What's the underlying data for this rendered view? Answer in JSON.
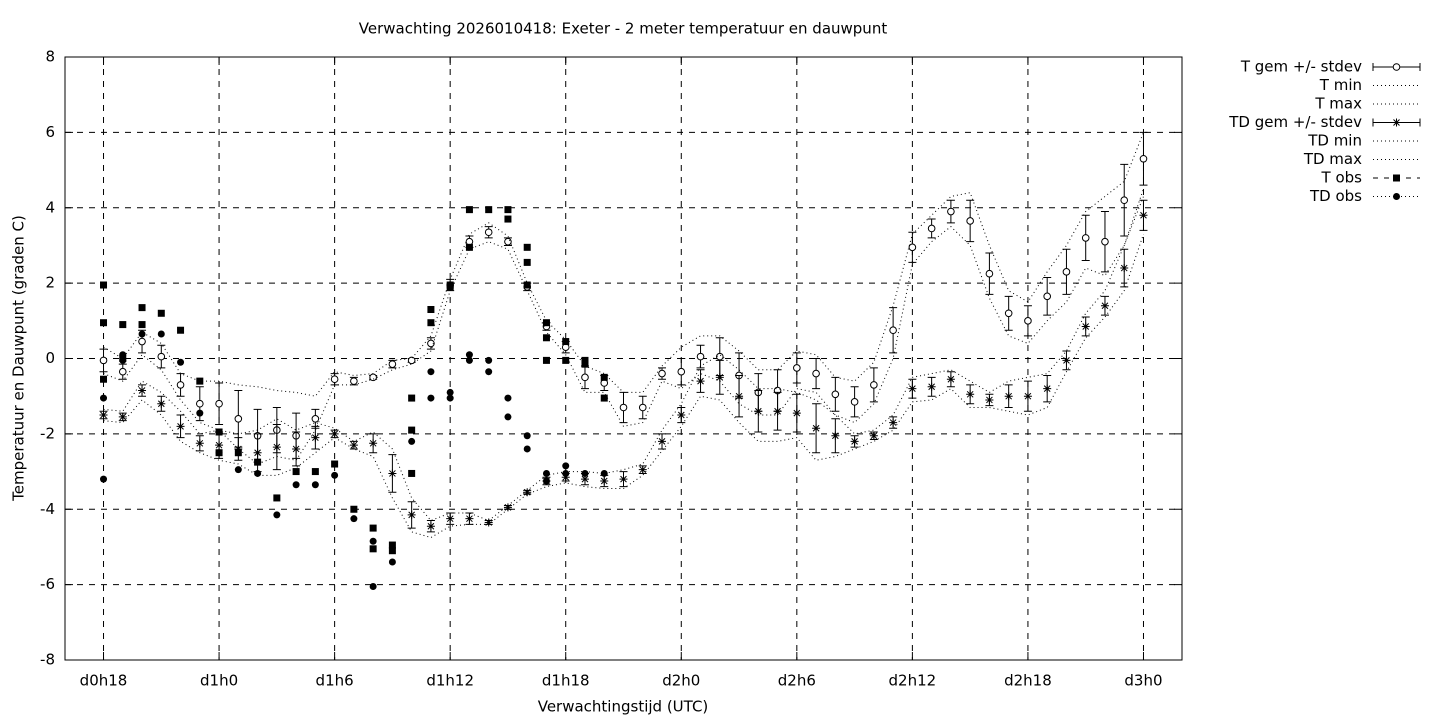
{
  "chart_data": {
    "type": "line",
    "title": "Verwachting 2026010418: Exeter - 2 meter temperatuur en dauwpunt",
    "x_label": "Verwachtingstijd (UTC)",
    "y_label": "Temperatuur en Dauwpunt (graden C)",
    "xlim": [
      16,
      74
    ],
    "ylim": [
      -8,
      8
    ],
    "xticks": [
      {
        "value": 18,
        "label": "d0h18"
      },
      {
        "value": 24,
        "label": "d1h0"
      },
      {
        "value": 30,
        "label": "d1h6"
      },
      {
        "value": 36,
        "label": "d1h12"
      },
      {
        "value": 42,
        "label": "d1h18"
      },
      {
        "value": 48,
        "label": "d2h0"
      },
      {
        "value": 54,
        "label": "d2h6"
      },
      {
        "value": 60,
        "label": "d2h12"
      },
      {
        "value": 66,
        "label": "d2h18"
      },
      {
        "value": 72,
        "label": "d3h0"
      }
    ],
    "yticks": [
      -8,
      -6,
      -4,
      -2,
      0,
      2,
      4,
      6,
      8
    ],
    "grid": true,
    "legend": "outside-right",
    "x": [
      18,
      19,
      20,
      21,
      22,
      23,
      24,
      25,
      26,
      27,
      28,
      29,
      30,
      31,
      32,
      33,
      34,
      35,
      36,
      37,
      38,
      39,
      40,
      41,
      42,
      43,
      44,
      45,
      46,
      47,
      48,
      49,
      50,
      51,
      52,
      53,
      54,
      55,
      56,
      57,
      58,
      59,
      60,
      61,
      62,
      63,
      64,
      65,
      66,
      67,
      68,
      69,
      70,
      71,
      72
    ],
    "series": [
      {
        "name": "T gem +/- stdev",
        "style": "errorbars",
        "marker": "circle-open",
        "color": "#000000",
        "values": [
          -0.05,
          -0.35,
          0.45,
          0.05,
          -0.7,
          -1.2,
          -1.2,
          -1.6,
          -2.05,
          -1.9,
          -2.05,
          -1.6,
          -0.55,
          -0.6,
          -0.5,
          -0.15,
          -0.05,
          0.4,
          1.95,
          3.1,
          3.35,
          3.1,
          1.9,
          0.85,
          0.3,
          -0.5,
          -0.65,
          -1.3,
          -1.3,
          -0.4,
          -0.35,
          0.05,
          0.05,
          -0.45,
          -0.9,
          -0.85,
          -0.25,
          -0.4,
          -0.95,
          -1.15,
          -0.7,
          0.75,
          2.95,
          3.45,
          3.9,
          3.65,
          2.25,
          1.2,
          1.0,
          1.65,
          2.3,
          3.2,
          3.1,
          4.2,
          5.3
        ],
        "errors": [
          0.3,
          0.2,
          0.3,
          0.3,
          0.3,
          0.45,
          0.55,
          0.75,
          0.7,
          0.6,
          0.6,
          0.25,
          0.15,
          0.1,
          0.05,
          0.1,
          0.05,
          0.15,
          0.15,
          0.15,
          0.15,
          0.1,
          0.1,
          0.1,
          0.15,
          0.3,
          0.2,
          0.4,
          0.3,
          0.15,
          0.35,
          0.3,
          0.5,
          0.6,
          0.5,
          0.55,
          0.4,
          0.4,
          0.45,
          0.4,
          0.45,
          0.6,
          0.4,
          0.25,
          0.3,
          0.55,
          0.55,
          0.45,
          0.4,
          0.5,
          0.6,
          0.6,
          0.8,
          0.95,
          0.7
        ]
      },
      {
        "name": "T min",
        "style": "dotted",
        "color": "#000000",
        "values": [
          -0.4,
          -0.6,
          0.1,
          -0.3,
          -1.1,
          -1.7,
          -1.9,
          -2.4,
          -2.8,
          -2.6,
          -2.7,
          -1.9,
          -0.7,
          -0.7,
          -0.55,
          -0.3,
          -0.15,
          0.2,
          1.8,
          2.9,
          3.1,
          2.9,
          1.8,
          0.7,
          0.1,
          -0.9,
          -0.9,
          -1.8,
          -1.7,
          -0.6,
          -0.8,
          -0.4,
          -0.6,
          -1.2,
          -1.5,
          -1.5,
          -0.8,
          -0.9,
          -1.5,
          -1.7,
          -1.2,
          0.0,
          2.5,
          3.1,
          3.5,
          3.0,
          1.6,
          0.6,
          0.4,
          1.0,
          1.5,
          2.4,
          2.2,
          3.0,
          4.5
        ]
      },
      {
        "name": "T max",
        "style": "dotted",
        "color": "#000000",
        "values": [
          0.3,
          0.0,
          0.7,
          0.4,
          -0.4,
          -0.6,
          -0.6,
          -0.7,
          -0.75,
          -0.85,
          -0.9,
          -1.0,
          -0.35,
          -0.45,
          -0.4,
          -0.05,
          0.0,
          0.6,
          2.1,
          3.3,
          3.6,
          3.25,
          2.0,
          1.0,
          0.5,
          -0.2,
          -0.4,
          -0.9,
          -0.9,
          -0.2,
          0.3,
          0.6,
          0.6,
          0.2,
          -0.3,
          -0.3,
          0.2,
          0.1,
          -0.5,
          -0.6,
          -0.1,
          1.4,
          3.3,
          3.8,
          4.3,
          4.4,
          3.0,
          1.8,
          1.5,
          2.3,
          3.0,
          3.9,
          4.3,
          4.7,
          6.0
        ]
      },
      {
        "name": "TD gem +/- stdev",
        "style": "errorbars",
        "marker": "star",
        "color": "#000000",
        "values": [
          -1.5,
          -1.55,
          -0.85,
          -1.2,
          -1.8,
          -2.25,
          -2.3,
          -2.4,
          -2.5,
          -2.35,
          -2.4,
          -2.1,
          -2.0,
          -2.3,
          -2.25,
          -3.05,
          -4.15,
          -4.45,
          -4.25,
          -4.25,
          -4.35,
          -3.95,
          -3.55,
          -3.25,
          -3.15,
          -3.2,
          -3.25,
          -3.2,
          -2.95,
          -2.2,
          -1.5,
          -0.6,
          -0.5,
          -1.0,
          -1.4,
          -1.4,
          -1.45,
          -1.85,
          -2.05,
          -2.2,
          -2.05,
          -1.7,
          -0.8,
          -0.75,
          -0.55,
          -0.95,
          -1.1,
          -1.0,
          -1.0,
          -0.8,
          -0.05,
          0.85,
          1.4,
          2.4,
          3.8
        ],
        "errors": [
          0.1,
          0.1,
          0.15,
          0.2,
          0.3,
          0.2,
          0.35,
          0.3,
          0.5,
          0.6,
          0.45,
          0.3,
          0.1,
          0.1,
          0.25,
          0.5,
          0.35,
          0.15,
          0.15,
          0.15,
          0.05,
          0.05,
          0.05,
          0.1,
          0.1,
          0.15,
          0.15,
          0.2,
          0.1,
          0.2,
          0.2,
          0.3,
          0.45,
          0.55,
          0.55,
          0.5,
          0.5,
          0.65,
          0.45,
          0.15,
          0.1,
          0.15,
          0.25,
          0.25,
          0.2,
          0.25,
          0.15,
          0.3,
          0.4,
          0.35,
          0.25,
          0.25,
          0.25,
          0.5,
          0.4
        ]
      },
      {
        "name": "TD min",
        "style": "dotted",
        "color": "#000000",
        "values": [
          -1.65,
          -1.7,
          -1.1,
          -1.5,
          -2.2,
          -2.5,
          -2.7,
          -2.8,
          -3.1,
          -3.1,
          -2.9,
          -2.5,
          -2.1,
          -2.4,
          -2.6,
          -3.7,
          -4.6,
          -4.75,
          -4.45,
          -4.4,
          -4.4,
          -4.0,
          -3.6,
          -3.4,
          -3.3,
          -3.4,
          -3.45,
          -3.45,
          -3.1,
          -2.45,
          -1.8,
          -1.0,
          -1.1,
          -1.7,
          -2.2,
          -2.2,
          -2.1,
          -2.7,
          -2.6,
          -2.4,
          -2.2,
          -1.9,
          -1.15,
          -1.1,
          -0.8,
          -1.3,
          -1.3,
          -1.4,
          -1.5,
          -1.3,
          -0.35,
          0.55,
          1.1,
          1.8,
          3.3
        ]
      },
      {
        "name": "TD max",
        "style": "dotted",
        "color": "#000000",
        "values": [
          -1.35,
          -1.4,
          -0.6,
          -0.9,
          -1.4,
          -2.0,
          -1.9,
          -2.0,
          -1.9,
          -1.6,
          -1.9,
          -1.7,
          -1.85,
          -2.2,
          -1.95,
          -2.4,
          -3.7,
          -4.3,
          -4.1,
          -4.1,
          -4.3,
          -3.9,
          -3.5,
          -3.1,
          -3.0,
          -3.0,
          -3.05,
          -2.95,
          -2.8,
          -1.9,
          -1.2,
          -0.2,
          0.1,
          -0.3,
          -0.8,
          -0.8,
          -0.9,
          -1.1,
          -1.5,
          -2.0,
          -1.9,
          -1.5,
          -0.5,
          -0.4,
          -0.3,
          -0.6,
          -0.9,
          -0.6,
          -0.5,
          -0.4,
          0.2,
          1.2,
          1.8,
          3.0,
          4.3
        ]
      },
      {
        "name": "T obs",
        "style": "points",
        "marker": "square",
        "color": "#000000",
        "x": [
          18,
          18,
          18,
          19,
          19,
          20,
          20,
          21,
          22,
          23,
          24,
          24,
          25,
          26,
          27,
          28,
          29,
          30,
          31,
          32,
          32,
          33,
          33,
          34,
          34,
          34,
          35,
          35,
          36,
          36,
          37,
          37,
          38,
          39,
          39,
          40,
          40,
          40,
          41,
          41,
          41,
          42,
          42,
          43,
          43,
          44,
          44
        ],
        "values": [
          1.95,
          0.95,
          -0.55,
          0.9,
          0.0,
          1.35,
          0.9,
          1.2,
          0.75,
          -0.6,
          -1.95,
          -2.5,
          -2.5,
          -2.75,
          -3.7,
          -3.0,
          -3.0,
          -2.8,
          -4.0,
          -4.5,
          -5.05,
          -4.95,
          -5.1,
          -3.05,
          -1.9,
          -1.05,
          1.3,
          0.95,
          1.9,
          1.95,
          3.95,
          2.95,
          3.95,
          3.95,
          3.7,
          2.95,
          2.55,
          1.95,
          0.95,
          0.55,
          -0.05,
          0.45,
          -0.05,
          -0.05,
          -0.15,
          -0.5,
          -1.05
        ]
      },
      {
        "name": "TD obs",
        "style": "points",
        "marker": "circle-filled",
        "color": "#000000",
        "x": [
          18,
          18,
          19,
          19,
          20,
          21,
          22,
          23,
          24,
          25,
          26,
          27,
          28,
          29,
          30,
          31,
          32,
          32,
          33,
          34,
          35,
          35,
          36,
          36,
          37,
          37,
          38,
          38,
          39,
          39,
          40,
          40,
          41,
          41,
          42,
          42,
          43,
          44
        ],
        "values": [
          -1.05,
          -3.2,
          0.1,
          -0.05,
          0.65,
          0.65,
          -0.1,
          -1.45,
          -2.5,
          -2.95,
          -3.05,
          -4.15,
          -3.35,
          -3.35,
          -3.1,
          -4.25,
          -4.85,
          -6.05,
          -5.4,
          -2.2,
          -1.05,
          -0.35,
          -0.9,
          -1.05,
          0.1,
          -0.05,
          -0.05,
          -0.35,
          -1.05,
          -1.55,
          -2.05,
          -2.4,
          -3.05,
          -3.25,
          -2.85,
          -3.05,
          -3.05,
          -3.05
        ]
      }
    ]
  }
}
